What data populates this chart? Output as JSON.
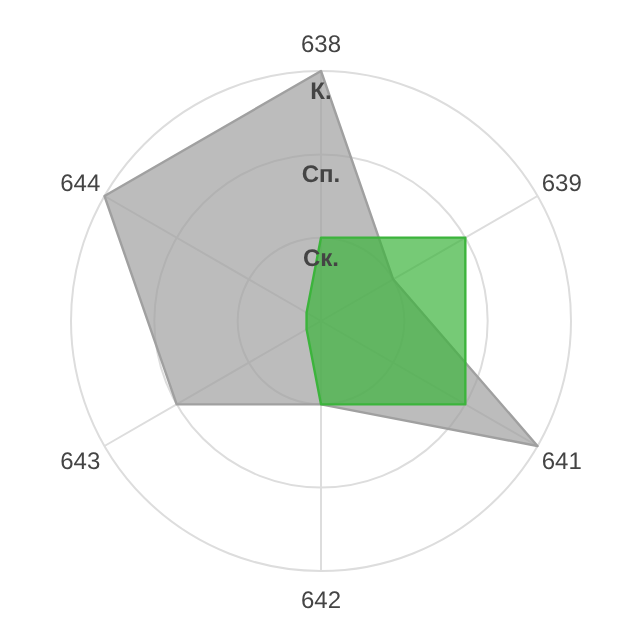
{
  "chart_data": {
    "type": "radar",
    "categories": [
      "638",
      "639",
      "641",
      "642",
      "643",
      "644"
    ],
    "ylim": [
      0,
      3
    ],
    "yticks": [
      {
        "value": 1,
        "label": "Ск."
      },
      {
        "value": 2,
        "label": "Сп."
      },
      {
        "value": 3,
        "label": "К."
      }
    ],
    "grid": true,
    "series": [
      {
        "color": "#a0a0a0",
        "values": [
          3,
          1,
          3,
          1,
          2,
          3
        ]
      },
      {
        "color": "#3cb43c",
        "values": [
          1,
          2,
          2,
          1,
          0.2,
          0.2
        ]
      }
    ]
  }
}
